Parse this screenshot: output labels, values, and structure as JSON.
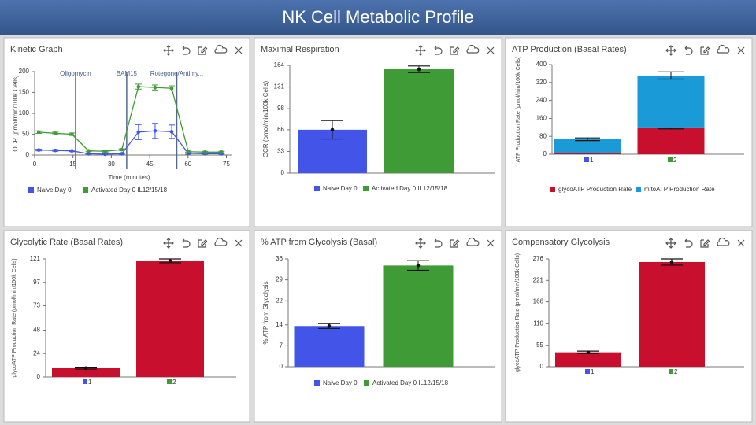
{
  "page_title": "NK Cell Metabolic Profile",
  "chart_data": [
    {
      "type": "line",
      "title": "Kinetic Graph",
      "x_label": "Time (minutes)",
      "y_label": "OCR (pmol/min/100k Cells)",
      "x": [
        1.6,
        8.1,
        14.6,
        21.1,
        27.6,
        34.1,
        40.6,
        47.1,
        53.6,
        60.1,
        66.6,
        73.1
      ],
      "series": [
        {
          "name": "Naive Day 0",
          "color": "#4355e8",
          "values": [
            12,
            11,
            10,
            3,
            2,
            3,
            55,
            58,
            56,
            4,
            3,
            3
          ],
          "errors": [
            2,
            2,
            2,
            1,
            1,
            1,
            18,
            18,
            16,
            2,
            1,
            1
          ]
        },
        {
          "name": "Activated Day 0 IL12/15/18",
          "color": "#3f9b35",
          "values": [
            55,
            52,
            50,
            10,
            9,
            13,
            164,
            162,
            160,
            8,
            7,
            7
          ],
          "errors": [
            3,
            3,
            3,
            2,
            2,
            2,
            6,
            6,
            6,
            2,
            2,
            2
          ]
        }
      ],
      "events": [
        {
          "label": "Oligomycin",
          "x": 16
        },
        {
          "label": "BAM15",
          "x": 36
        },
        {
          "label": "Rotegone/Antimy...",
          "x": 55.6
        }
      ],
      "xlim": [
        0,
        77
      ],
      "xticks": [
        0,
        15,
        30,
        45,
        60,
        75
      ],
      "ylim": [
        0,
        200
      ],
      "yticks": [
        0,
        50,
        100,
        150,
        200
      ]
    },
    {
      "type": "bar",
      "title": "Maximal Respiration",
      "y_label": "OCR (pmol/min/100k Cells)",
      "categories": [
        "Naive Day 0",
        "Activated Day 0 IL12/15/18"
      ],
      "values": [
        66,
        158
      ],
      "errors": [
        14,
        5
      ],
      "colors": [
        "#4355e8",
        "#3f9b35"
      ],
      "legend": true,
      "ylim": [
        0,
        164
      ],
      "yticks": [
        0,
        33,
        66,
        98,
        131,
        164
      ]
    },
    {
      "type": "stacked_bar",
      "title": "ATP Production (Basal Rates)",
      "y_label": "ATP Production Rate (pmol/min/100k Cells)",
      "categories": [
        "1",
        "2"
      ],
      "category_colors": [
        "#4355e8",
        "#3f9b35"
      ],
      "series": [
        {
          "name": "glycoATP Production Rate",
          "color": "#c8102e",
          "values": [
            7,
            116
          ],
          "errors": [
            2,
            3
          ]
        },
        {
          "name": "mitoATP Production Rate",
          "color": "#1a9ad6",
          "values": [
            60,
            235
          ],
          "errors": [
            6,
            16
          ]
        }
      ],
      "ylim": [
        0,
        400
      ],
      "yticks": [
        0,
        80,
        160,
        240,
        320,
        400
      ]
    },
    {
      "type": "bar",
      "title": "Glycolytic Rate (Basal Rates)",
      "y_label": "glycoATP Production Rate (pmol/min/100k Cells)",
      "categories": [
        "1",
        "2"
      ],
      "category_colors": [
        "#4355e8",
        "#3f9b35"
      ],
      "values": [
        9,
        119
      ],
      "errors": [
        1,
        2
      ],
      "colors": [
        "#c8102e",
        "#c8102e"
      ],
      "ylim": [
        0,
        121
      ],
      "yticks": [
        0,
        24,
        48,
        73,
        97,
        121
      ]
    },
    {
      "type": "bar",
      "title": "% ATP from Glycolysis (Basal)",
      "y_label": "% ATP from Glycolysis",
      "categories": [
        "Naive Day 0",
        "Activated Day 0 IL12/15/18"
      ],
      "values": [
        13.6,
        33.8
      ],
      "errors": [
        0.8,
        1.6
      ],
      "colors": [
        "#4355e8",
        "#3f9b35"
      ],
      "legend": true,
      "ylim": [
        0,
        36
      ],
      "yticks": [
        0,
        7,
        14,
        22,
        29,
        36
      ]
    },
    {
      "type": "bar",
      "title": "Compensatory Glycolysis",
      "y_label": "glycoATP Production Rate (pmol/min/100k Cells)",
      "categories": [
        "1",
        "2"
      ],
      "category_colors": [
        "#4355e8",
        "#3f9b35"
      ],
      "values": [
        37,
        268
      ],
      "errors": [
        3,
        8
      ],
      "colors": [
        "#c8102e",
        "#c8102e"
      ],
      "ylim": [
        0,
        276
      ],
      "yticks": [
        0,
        55,
        110,
        166,
        221,
        276
      ]
    }
  ]
}
